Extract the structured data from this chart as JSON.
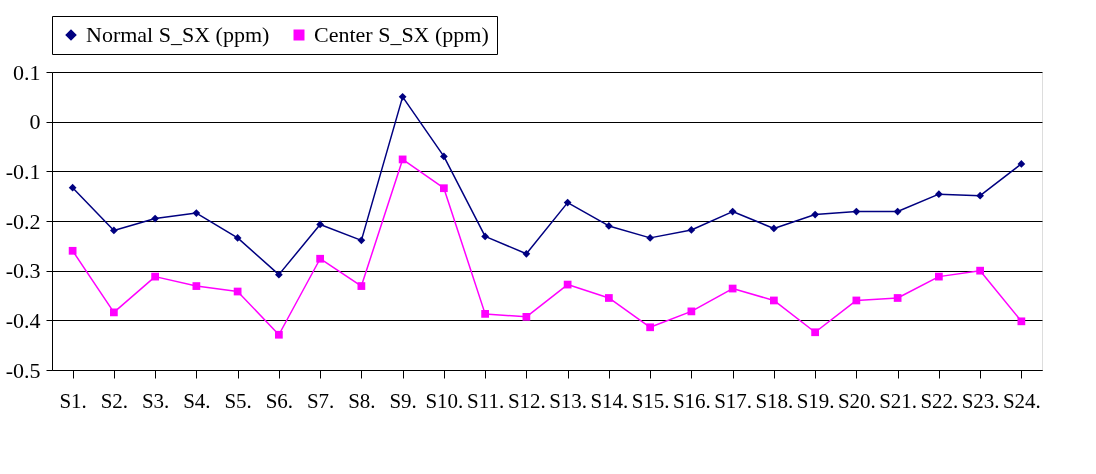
{
  "chart_data": {
    "type": "line",
    "categories": [
      "S1.",
      "S2.",
      "S3.",
      "S4.",
      "S5.",
      "S6.",
      "S7.",
      "S8.",
      "S9.",
      "S10.",
      "S11.",
      "S12.",
      "S13.",
      "S14.",
      "S15.",
      "S16.",
      "S17.",
      "S18.",
      "S19.",
      "S20.",
      "S21.",
      "S22.",
      "S23.",
      "S24."
    ],
    "series": [
      {
        "name": "Normal S_SX (ppm)",
        "color": "#000080",
        "marker": "diamond",
        "values": [
          -0.133,
          -0.219,
          -0.195,
          -0.184,
          -0.234,
          -0.308,
          -0.207,
          -0.239,
          0.05,
          -0.07,
          -0.231,
          -0.266,
          -0.163,
          -0.21,
          -0.234,
          -0.218,
          -0.181,
          -0.215,
          -0.187,
          -0.181,
          -0.181,
          -0.146,
          -0.149,
          -0.085
        ]
      },
      {
        "name": "Center S_SX (ppm)",
        "color": "#ff00ff",
        "marker": "square",
        "values": [
          -0.26,
          -0.384,
          -0.312,
          -0.331,
          -0.342,
          -0.429,
          -0.276,
          -0.331,
          -0.076,
          -0.134,
          -0.387,
          -0.393,
          -0.328,
          -0.355,
          -0.414,
          -0.382,
          -0.336,
          -0.36,
          -0.424,
          -0.36,
          -0.355,
          -0.312,
          -0.3,
          -0.402
        ]
      }
    ],
    "ylim": [
      -0.5,
      0.1
    ],
    "yticks": [
      -0.5,
      -0.4,
      -0.3,
      -0.2,
      -0.1,
      0,
      0.1
    ],
    "grid": "y",
    "legend": "top",
    "line_style": "solid"
  }
}
